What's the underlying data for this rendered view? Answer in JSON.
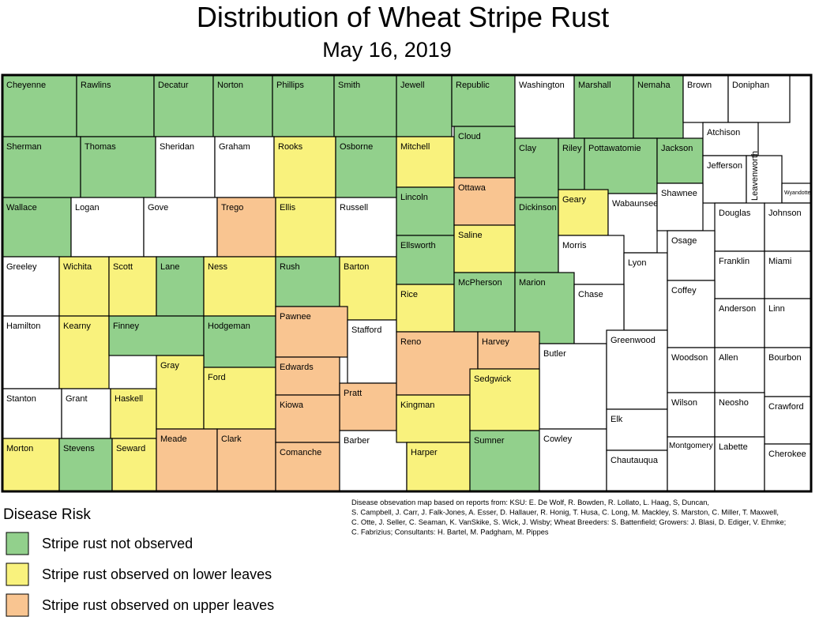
{
  "title": "Distribution of Wheat Stripe Rust",
  "subtitle": "May 16, 2019",
  "legend": {
    "title": "Disease Risk",
    "items": [
      {
        "label": "Stripe rust not observed",
        "color": "#92d08c"
      },
      {
        "label": "Stripe rust observed on lower leaves",
        "color": "#f9f27d"
      },
      {
        "label": "Stripe rust observed on upper leaves",
        "color": "#f9c591"
      }
    ]
  },
  "note": [
    "Disease obsevation map based on reports from:  KSU: E. De Wolf, R. Bowden,  R. Lollato, L. Haag,  S, Duncan,",
    "S. Campbell, J. Carr,  J. Falk-Jones,  A. Esser, D. Hallauer,  R. Honig, T. Husa, C. Long, M. Mackley, S. Marston, C. Miller, T. Maxwell,",
    "C. Otte, J. Seller, C. Seaman,  K. VanSkike, S. Wick, J. Wisby;  Wheat Breeders: S. Battenfield; Growers: J. Blasi, D. Ediger, V. Ehmke;",
    "C. Fabrizius; Consultants: H. Bartel, M. Padgham, M. Pippes"
  ],
  "counties": [
    {
      "name": "Cheyenne",
      "risk": 0
    },
    {
      "name": "Rawlins",
      "risk": 0
    },
    {
      "name": "Decatur",
      "risk": 0
    },
    {
      "name": "Norton",
      "risk": 0
    },
    {
      "name": "Phillips",
      "risk": 0
    },
    {
      "name": "Smith",
      "risk": 0
    },
    {
      "name": "Jewell",
      "risk": 0
    },
    {
      "name": "Republic",
      "risk": 0
    },
    {
      "name": "Washington",
      "risk": null
    },
    {
      "name": "Marshall",
      "risk": 0
    },
    {
      "name": "Nemaha",
      "risk": 0
    },
    {
      "name": "Brown",
      "risk": null
    },
    {
      "name": "Doniphan",
      "risk": null
    },
    {
      "name": "Sherman",
      "risk": 0
    },
    {
      "name": "Thomas",
      "risk": 0
    },
    {
      "name": "Sheridan",
      "risk": null
    },
    {
      "name": "Graham",
      "risk": null
    },
    {
      "name": "Rooks",
      "risk": 1
    },
    {
      "name": "Osborne",
      "risk": 0
    },
    {
      "name": "Mitchell",
      "risk": 1
    },
    {
      "name": "Cloud",
      "risk": 0
    },
    {
      "name": "Clay",
      "risk": 0
    },
    {
      "name": "Riley",
      "risk": 0
    },
    {
      "name": "Pottawatomie",
      "risk": 0
    },
    {
      "name": "Jackson",
      "risk": 0
    },
    {
      "name": "Atchison",
      "risk": null
    },
    {
      "name": "Jefferson",
      "risk": null
    },
    {
      "name": "Leavenworth",
      "risk": null
    },
    {
      "name": "Wyandotte",
      "risk": null
    },
    {
      "name": "Wallace",
      "risk": 0
    },
    {
      "name": "Logan",
      "risk": null
    },
    {
      "name": "Gove",
      "risk": null
    },
    {
      "name": "Trego",
      "risk": 2
    },
    {
      "name": "Ellis",
      "risk": 1
    },
    {
      "name": "Russell",
      "risk": null
    },
    {
      "name": "Lincoln",
      "risk": 0
    },
    {
      "name": "Ottawa",
      "risk": 2
    },
    {
      "name": "Dickinson",
      "risk": 0
    },
    {
      "name": "Geary",
      "risk": 1
    },
    {
      "name": "Wabaunsee",
      "risk": null
    },
    {
      "name": "Shawnee",
      "risk": null
    },
    {
      "name": "Douglas",
      "risk": null
    },
    {
      "name": "Johnson",
      "risk": null
    },
    {
      "name": "Greeley",
      "risk": null
    },
    {
      "name": "Wichita",
      "risk": 1
    },
    {
      "name": "Scott",
      "risk": 1
    },
    {
      "name": "Lane",
      "risk": 0
    },
    {
      "name": "Ness",
      "risk": 1
    },
    {
      "name": "Rush",
      "risk": 0
    },
    {
      "name": "Barton",
      "risk": 1
    },
    {
      "name": "Ellsworth",
      "risk": 0
    },
    {
      "name": "Saline",
      "risk": 1
    },
    {
      "name": "Morris",
      "risk": null
    },
    {
      "name": "Lyon",
      "risk": null
    },
    {
      "name": "Osage",
      "risk": null
    },
    {
      "name": "Franklin",
      "risk": null
    },
    {
      "name": "Miami",
      "risk": null
    },
    {
      "name": "Hamilton",
      "risk": null
    },
    {
      "name": "Kearny",
      "risk": 1
    },
    {
      "name": "Finney",
      "risk": 0
    },
    {
      "name": "Hodgeman",
      "risk": 0
    },
    {
      "name": "Pawnee",
      "risk": 2
    },
    {
      "name": "Stafford",
      "risk": null
    },
    {
      "name": "Rice",
      "risk": 1
    },
    {
      "name": "McPherson",
      "risk": 0
    },
    {
      "name": "Marion",
      "risk": 0
    },
    {
      "name": "Chase",
      "risk": null
    },
    {
      "name": "Coffey",
      "risk": null
    },
    {
      "name": "Anderson",
      "risk": null
    },
    {
      "name": "Linn",
      "risk": null
    },
    {
      "name": "Stanton",
      "risk": null
    },
    {
      "name": "Grant",
      "risk": null
    },
    {
      "name": "Haskell",
      "risk": 1
    },
    {
      "name": "Gray",
      "risk": 1
    },
    {
      "name": "Ford",
      "risk": 1
    },
    {
      "name": "Edwards",
      "risk": 2
    },
    {
      "name": "Pratt",
      "risk": 2
    },
    {
      "name": "Reno",
      "risk": 2
    },
    {
      "name": "Harvey",
      "risk": 2
    },
    {
      "name": "Butler",
      "risk": null
    },
    {
      "name": "Greenwood",
      "risk": null
    },
    {
      "name": "Woodson",
      "risk": null
    },
    {
      "name": "Allen",
      "risk": null
    },
    {
      "name": "Bourbon",
      "risk": null
    },
    {
      "name": "Morton",
      "risk": 1
    },
    {
      "name": "Stevens",
      "risk": 0
    },
    {
      "name": "Seward",
      "risk": 1
    },
    {
      "name": "Meade",
      "risk": 2
    },
    {
      "name": "Clark",
      "risk": 2
    },
    {
      "name": "Kiowa",
      "risk": 2
    },
    {
      "name": "Comanche",
      "risk": 2
    },
    {
      "name": "Barber",
      "risk": null
    },
    {
      "name": "Kingman",
      "risk": 1
    },
    {
      "name": "Harper",
      "risk": 1
    },
    {
      "name": "Sedgwick",
      "risk": 1
    },
    {
      "name": "Sumner",
      "risk": 0
    },
    {
      "name": "Cowley",
      "risk": null
    },
    {
      "name": "Elk",
      "risk": null
    },
    {
      "name": "Chautauqua",
      "risk": null
    },
    {
      "name": "Wilson",
      "risk": null
    },
    {
      "name": "Neosho",
      "risk": null
    },
    {
      "name": "Crawford",
      "risk": null
    },
    {
      "name": "Montgomery",
      "risk": null
    },
    {
      "name": "Labette",
      "risk": null
    },
    {
      "name": "Cherokee",
      "risk": null
    }
  ]
}
